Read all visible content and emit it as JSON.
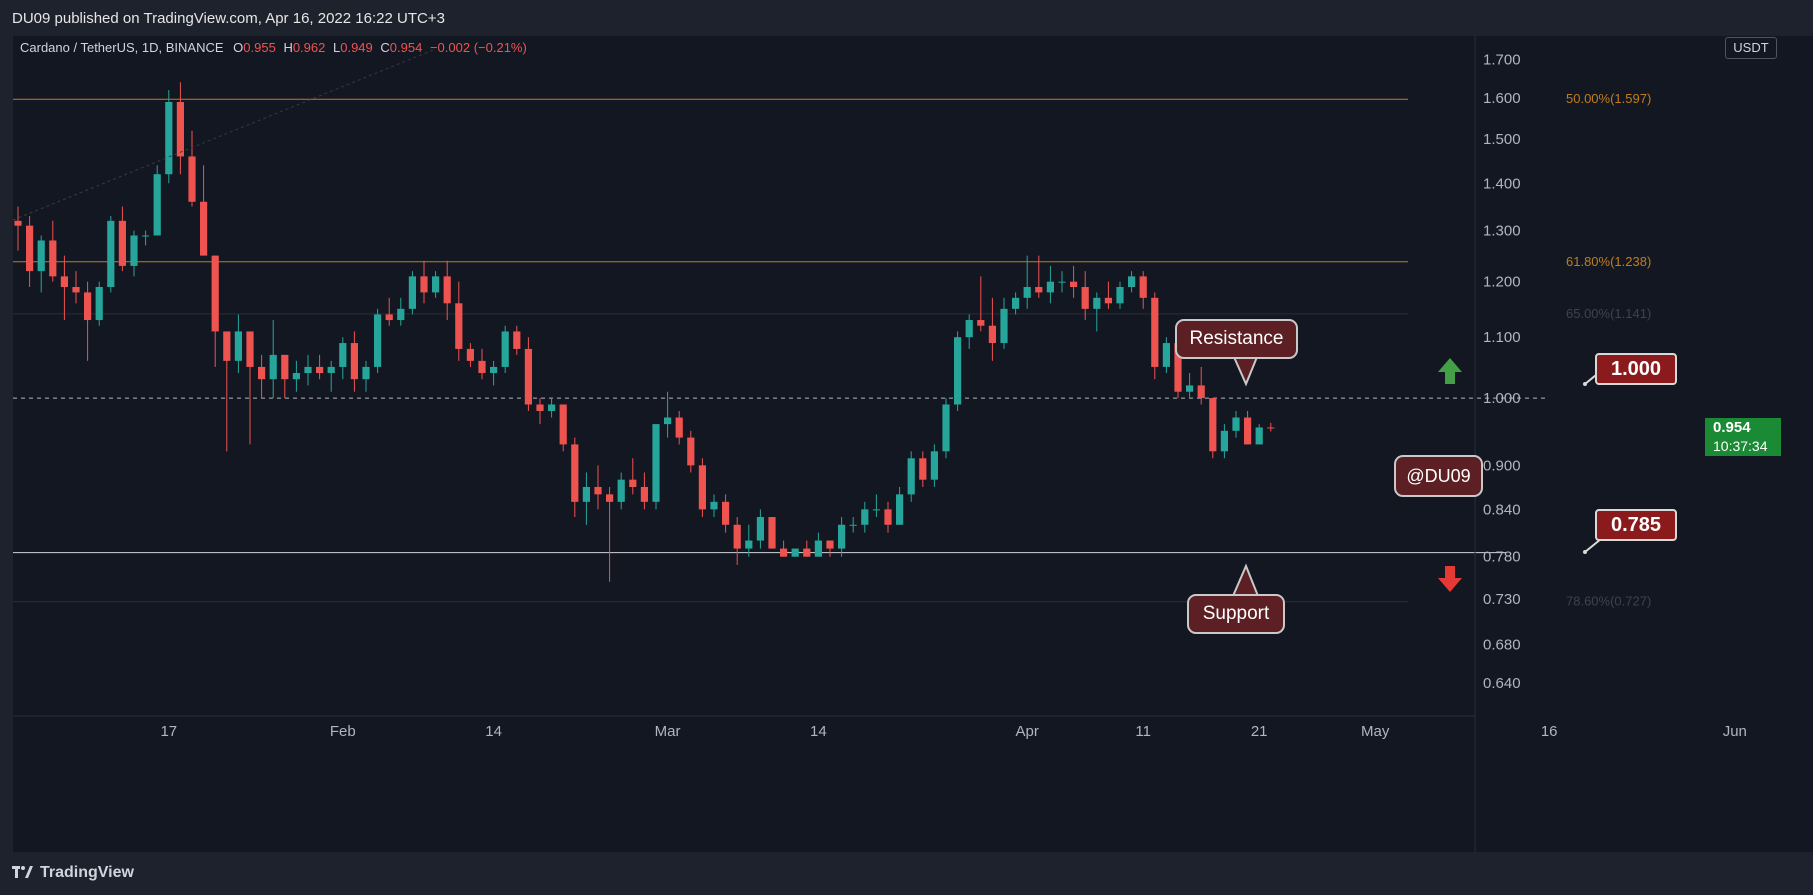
{
  "header": {
    "published": "DU09 published on TradingView.com, Apr 16, 2022 16:22 UTC+3"
  },
  "symbol": {
    "name": "Cardano / TetherUS, 1D, BINANCE",
    "o_label": "O",
    "o_value": "0.955",
    "h_label": "H",
    "h_value": "0.962",
    "l_label": "L",
    "l_value": "0.949",
    "c_label": "C",
    "c_value": "0.954",
    "change": "−0.002 (−0.21%)"
  },
  "currency": "USDT",
  "last_price": {
    "value": "0.954",
    "countdown": "10:37:34"
  },
  "colors": {
    "up": "#26a69a",
    "down": "#ef5350",
    "fib": "#c17d1a",
    "background": "#131722",
    "annotation": "#5b1f24",
    "price_tag": "#8a1a1c"
  },
  "annotations": {
    "resistance_label": "Resistance",
    "support_label": "Support",
    "author_label": "@DU09",
    "resistance_price": "1.000",
    "support_price": "0.785"
  },
  "footer": {
    "brand": "TradingView"
  },
  "chart_data": {
    "type": "candlestick",
    "title": "Cardano / TetherUS, 1D, BINANCE",
    "ylabel": "USDT",
    "ylim": [
      0.6,
      1.72
    ],
    "y_scale": "log",
    "y_ticks": [
      "1.700",
      "1.600",
      "1.500",
      "1.400",
      "1.300",
      "1.200",
      "1.100",
      "1.000",
      "0.900",
      "0.840",
      "0.780",
      "0.730",
      "0.680",
      "0.640"
    ],
    "x_ticks": [
      {
        "label": "17",
        "date": "2022-01-17"
      },
      {
        "label": "Feb",
        "date": "2022-02-01"
      },
      {
        "label": "14",
        "date": "2022-02-14"
      },
      {
        "label": "Mar",
        "date": "2022-03-01"
      },
      {
        "label": "14",
        "date": "2022-03-14"
      },
      {
        "label": "Apr",
        "date": "2022-04-01"
      },
      {
        "label": "11",
        "date": "2022-04-11"
      },
      {
        "label": "21",
        "date": "2022-04-21"
      },
      {
        "label": "May",
        "date": "2022-05-01"
      },
      {
        "label": "16",
        "date": "2022-05-16"
      },
      {
        "label": "Jun",
        "date": "2022-06-01"
      }
    ],
    "x_range": [
      "2022-01-04",
      "2022-06-03"
    ],
    "fib_levels": [
      {
        "label": "50.00%(1.597)",
        "price": 1.597,
        "style": "solid"
      },
      {
        "label": "61.80%(1.238)",
        "price": 1.238,
        "style": "solid"
      },
      {
        "label": "65.00%(1.141)",
        "price": 1.141,
        "style": "faint"
      },
      {
        "label": "78.60%(0.727)",
        "price": 0.727,
        "style": "faint"
      }
    ],
    "horizontal_lines": [
      {
        "price": 1.0,
        "style": "dashed"
      },
      {
        "price": 0.785,
        "style": "solid"
      }
    ],
    "candles": [
      {
        "date": "2022-01-04",
        "o": 1.32,
        "h": 1.35,
        "l": 1.26,
        "c": 1.31
      },
      {
        "date": "2022-01-05",
        "o": 1.31,
        "h": 1.33,
        "l": 1.19,
        "c": 1.22
      },
      {
        "date": "2022-01-06",
        "o": 1.22,
        "h": 1.29,
        "l": 1.18,
        "c": 1.28
      },
      {
        "date": "2022-01-07",
        "o": 1.28,
        "h": 1.32,
        "l": 1.2,
        "c": 1.21
      },
      {
        "date": "2022-01-08",
        "o": 1.21,
        "h": 1.25,
        "l": 1.13,
        "c": 1.19
      },
      {
        "date": "2022-01-09",
        "o": 1.19,
        "h": 1.22,
        "l": 1.16,
        "c": 1.18
      },
      {
        "date": "2022-01-10",
        "o": 1.18,
        "h": 1.2,
        "l": 1.06,
        "c": 1.13
      },
      {
        "date": "2022-01-11",
        "o": 1.13,
        "h": 1.2,
        "l": 1.12,
        "c": 1.19
      },
      {
        "date": "2022-01-12",
        "o": 1.19,
        "h": 1.33,
        "l": 1.18,
        "c": 1.32
      },
      {
        "date": "2022-01-13",
        "o": 1.32,
        "h": 1.35,
        "l": 1.22,
        "c": 1.23
      },
      {
        "date": "2022-01-14",
        "o": 1.23,
        "h": 1.3,
        "l": 1.21,
        "c": 1.29
      },
      {
        "date": "2022-01-15",
        "o": 1.29,
        "h": 1.3,
        "l": 1.27,
        "c": 1.29
      },
      {
        "date": "2022-01-16",
        "o": 1.29,
        "h": 1.44,
        "l": 1.29,
        "c": 1.42
      },
      {
        "date": "2022-01-17",
        "o": 1.42,
        "h": 1.62,
        "l": 1.4,
        "c": 1.59
      },
      {
        "date": "2022-01-18",
        "o": 1.59,
        "h": 1.64,
        "l": 1.42,
        "c": 1.46
      },
      {
        "date": "2022-01-19",
        "o": 1.46,
        "h": 1.52,
        "l": 1.35,
        "c": 1.36
      },
      {
        "date": "2022-01-20",
        "o": 1.36,
        "h": 1.44,
        "l": 1.25,
        "c": 1.25
      },
      {
        "date": "2022-01-21",
        "o": 1.25,
        "h": 1.25,
        "l": 1.05,
        "c": 1.11
      },
      {
        "date": "2022-01-22",
        "o": 1.11,
        "h": 1.11,
        "l": 0.92,
        "c": 1.06
      },
      {
        "date": "2022-01-23",
        "o": 1.06,
        "h": 1.14,
        "l": 1.04,
        "c": 1.11
      },
      {
        "date": "2022-01-24",
        "o": 1.11,
        "h": 1.11,
        "l": 0.93,
        "c": 1.05
      },
      {
        "date": "2022-01-25",
        "o": 1.05,
        "h": 1.07,
        "l": 1.0,
        "c": 1.03
      },
      {
        "date": "2022-01-26",
        "o": 1.03,
        "h": 1.13,
        "l": 1.0,
        "c": 1.07
      },
      {
        "date": "2022-01-27",
        "o": 1.07,
        "h": 1.07,
        "l": 1.0,
        "c": 1.03
      },
      {
        "date": "2022-01-28",
        "o": 1.03,
        "h": 1.06,
        "l": 1.01,
        "c": 1.04
      },
      {
        "date": "2022-01-29",
        "o": 1.04,
        "h": 1.07,
        "l": 1.02,
        "c": 1.05
      },
      {
        "date": "2022-01-30",
        "o": 1.05,
        "h": 1.07,
        "l": 1.03,
        "c": 1.04
      },
      {
        "date": "2022-01-31",
        "o": 1.04,
        "h": 1.06,
        "l": 1.01,
        "c": 1.05
      },
      {
        "date": "2022-02-01",
        "o": 1.05,
        "h": 1.1,
        "l": 1.03,
        "c": 1.09
      },
      {
        "date": "2022-02-02",
        "o": 1.09,
        "h": 1.11,
        "l": 1.01,
        "c": 1.03
      },
      {
        "date": "2022-02-03",
        "o": 1.03,
        "h": 1.06,
        "l": 1.01,
        "c": 1.05
      },
      {
        "date": "2022-02-04",
        "o": 1.05,
        "h": 1.15,
        "l": 1.04,
        "c": 1.14
      },
      {
        "date": "2022-02-05",
        "o": 1.14,
        "h": 1.17,
        "l": 1.12,
        "c": 1.13
      },
      {
        "date": "2022-02-06",
        "o": 1.13,
        "h": 1.17,
        "l": 1.12,
        "c": 1.15
      },
      {
        "date": "2022-02-07",
        "o": 1.15,
        "h": 1.22,
        "l": 1.14,
        "c": 1.21
      },
      {
        "date": "2022-02-08",
        "o": 1.21,
        "h": 1.24,
        "l": 1.16,
        "c": 1.18
      },
      {
        "date": "2022-02-09",
        "o": 1.18,
        "h": 1.22,
        "l": 1.17,
        "c": 1.21
      },
      {
        "date": "2022-02-10",
        "o": 1.21,
        "h": 1.24,
        "l": 1.13,
        "c": 1.16
      },
      {
        "date": "2022-02-11",
        "o": 1.16,
        "h": 1.2,
        "l": 1.06,
        "c": 1.08
      },
      {
        "date": "2022-02-12",
        "o": 1.08,
        "h": 1.09,
        "l": 1.05,
        "c": 1.06
      },
      {
        "date": "2022-02-13",
        "o": 1.06,
        "h": 1.08,
        "l": 1.03,
        "c": 1.04
      },
      {
        "date": "2022-02-14",
        "o": 1.04,
        "h": 1.06,
        "l": 1.02,
        "c": 1.05
      },
      {
        "date": "2022-02-15",
        "o": 1.05,
        "h": 1.12,
        "l": 1.04,
        "c": 1.11
      },
      {
        "date": "2022-02-16",
        "o": 1.11,
        "h": 1.12,
        "l": 1.07,
        "c": 1.08
      },
      {
        "date": "2022-02-17",
        "o": 1.08,
        "h": 1.1,
        "l": 0.98,
        "c": 0.99
      },
      {
        "date": "2022-02-18",
        "o": 0.99,
        "h": 1.0,
        "l": 0.96,
        "c": 0.98
      },
      {
        "date": "2022-02-19",
        "o": 0.98,
        "h": 1.0,
        "l": 0.97,
        "c": 0.99
      },
      {
        "date": "2022-02-20",
        "o": 0.99,
        "h": 0.99,
        "l": 0.92,
        "c": 0.93
      },
      {
        "date": "2022-02-21",
        "o": 0.93,
        "h": 0.94,
        "l": 0.83,
        "c": 0.85
      },
      {
        "date": "2022-02-22",
        "o": 0.85,
        "h": 0.89,
        "l": 0.82,
        "c": 0.87
      },
      {
        "date": "2022-02-23",
        "o": 0.87,
        "h": 0.9,
        "l": 0.84,
        "c": 0.86
      },
      {
        "date": "2022-02-24",
        "o": 0.86,
        "h": 0.87,
        "l": 0.75,
        "c": 0.85
      },
      {
        "date": "2022-02-25",
        "o": 0.85,
        "h": 0.89,
        "l": 0.84,
        "c": 0.88
      },
      {
        "date": "2022-02-26",
        "o": 0.88,
        "h": 0.91,
        "l": 0.86,
        "c": 0.87
      },
      {
        "date": "2022-02-27",
        "o": 0.87,
        "h": 0.89,
        "l": 0.84,
        "c": 0.85
      },
      {
        "date": "2022-02-28",
        "o": 0.85,
        "h": 0.96,
        "l": 0.84,
        "c": 0.96
      },
      {
        "date": "2022-03-01",
        "o": 0.96,
        "h": 1.01,
        "l": 0.94,
        "c": 0.97
      },
      {
        "date": "2022-03-02",
        "o": 0.97,
        "h": 0.98,
        "l": 0.93,
        "c": 0.94
      },
      {
        "date": "2022-03-03",
        "o": 0.94,
        "h": 0.95,
        "l": 0.89,
        "c": 0.9
      },
      {
        "date": "2022-03-04",
        "o": 0.9,
        "h": 0.91,
        "l": 0.83,
        "c": 0.84
      },
      {
        "date": "2022-03-05",
        "o": 0.84,
        "h": 0.86,
        "l": 0.83,
        "c": 0.85
      },
      {
        "date": "2022-03-06",
        "o": 0.85,
        "h": 0.86,
        "l": 0.81,
        "c": 0.82
      },
      {
        "date": "2022-03-07",
        "o": 0.82,
        "h": 0.83,
        "l": 0.77,
        "c": 0.79
      },
      {
        "date": "2022-03-08",
        "o": 0.79,
        "h": 0.82,
        "l": 0.78,
        "c": 0.8
      },
      {
        "date": "2022-03-09",
        "o": 0.8,
        "h": 0.84,
        "l": 0.79,
        "c": 0.83
      },
      {
        "date": "2022-03-10",
        "o": 0.83,
        "h": 0.83,
        "l": 0.79,
        "c": 0.79
      },
      {
        "date": "2022-03-11",
        "o": 0.79,
        "h": 0.8,
        "l": 0.78,
        "c": 0.78
      },
      {
        "date": "2022-03-12",
        "o": 0.78,
        "h": 0.79,
        "l": 0.78,
        "c": 0.79
      },
      {
        "date": "2022-03-13",
        "o": 0.79,
        "h": 0.8,
        "l": 0.78,
        "c": 0.78
      },
      {
        "date": "2022-03-14",
        "o": 0.78,
        "h": 0.81,
        "l": 0.78,
        "c": 0.8
      },
      {
        "date": "2022-03-15",
        "o": 0.8,
        "h": 0.8,
        "l": 0.78,
        "c": 0.79
      },
      {
        "date": "2022-03-16",
        "o": 0.79,
        "h": 0.83,
        "l": 0.78,
        "c": 0.82
      },
      {
        "date": "2022-03-17",
        "o": 0.82,
        "h": 0.83,
        "l": 0.81,
        "c": 0.82
      },
      {
        "date": "2022-03-18",
        "o": 0.82,
        "h": 0.85,
        "l": 0.81,
        "c": 0.84
      },
      {
        "date": "2022-03-19",
        "o": 0.84,
        "h": 0.86,
        "l": 0.83,
        "c": 0.84
      },
      {
        "date": "2022-03-20",
        "o": 0.84,
        "h": 0.85,
        "l": 0.81,
        "c": 0.82
      },
      {
        "date": "2022-03-21",
        "o": 0.82,
        "h": 0.87,
        "l": 0.82,
        "c": 0.86
      },
      {
        "date": "2022-03-22",
        "o": 0.86,
        "h": 0.92,
        "l": 0.85,
        "c": 0.91
      },
      {
        "date": "2022-03-23",
        "o": 0.91,
        "h": 0.92,
        "l": 0.87,
        "c": 0.88
      },
      {
        "date": "2022-03-24",
        "o": 0.88,
        "h": 0.93,
        "l": 0.87,
        "c": 0.92
      },
      {
        "date": "2022-03-25",
        "o": 0.92,
        "h": 1.0,
        "l": 0.91,
        "c": 0.99
      },
      {
        "date": "2022-03-26",
        "o": 0.99,
        "h": 1.11,
        "l": 0.98,
        "c": 1.1
      },
      {
        "date": "2022-03-27",
        "o": 1.1,
        "h": 1.14,
        "l": 1.08,
        "c": 1.13
      },
      {
        "date": "2022-03-28",
        "o": 1.13,
        "h": 1.21,
        "l": 1.11,
        "c": 1.12
      },
      {
        "date": "2022-03-29",
        "o": 1.12,
        "h": 1.17,
        "l": 1.06,
        "c": 1.09
      },
      {
        "date": "2022-03-30",
        "o": 1.09,
        "h": 1.17,
        "l": 1.08,
        "c": 1.15
      },
      {
        "date": "2022-03-31",
        "o": 1.15,
        "h": 1.18,
        "l": 1.14,
        "c": 1.17
      },
      {
        "date": "2022-04-01",
        "o": 1.17,
        "h": 1.25,
        "l": 1.15,
        "c": 1.19
      },
      {
        "date": "2022-04-02",
        "o": 1.19,
        "h": 1.25,
        "l": 1.17,
        "c": 1.18
      },
      {
        "date": "2022-04-03",
        "o": 1.18,
        "h": 1.23,
        "l": 1.16,
        "c": 1.2
      },
      {
        "date": "2022-04-04",
        "o": 1.2,
        "h": 1.22,
        "l": 1.18,
        "c": 1.2
      },
      {
        "date": "2022-04-05",
        "o": 1.2,
        "h": 1.23,
        "l": 1.17,
        "c": 1.19
      },
      {
        "date": "2022-04-06",
        "o": 1.19,
        "h": 1.22,
        "l": 1.13,
        "c": 1.15
      },
      {
        "date": "2022-04-07",
        "o": 1.15,
        "h": 1.18,
        "l": 1.11,
        "c": 1.17
      },
      {
        "date": "2022-04-08",
        "o": 1.17,
        "h": 1.2,
        "l": 1.15,
        "c": 1.16
      },
      {
        "date": "2022-04-09",
        "o": 1.16,
        "h": 1.2,
        "l": 1.15,
        "c": 1.19
      },
      {
        "date": "2022-04-10",
        "o": 1.19,
        "h": 1.22,
        "l": 1.18,
        "c": 1.21
      },
      {
        "date": "2022-04-11",
        "o": 1.21,
        "h": 1.22,
        "l": 1.15,
        "c": 1.17
      },
      {
        "date": "2022-04-12",
        "o": 1.17,
        "h": 1.18,
        "l": 1.03,
        "c": 1.05
      },
      {
        "date": "2022-04-13",
        "o": 1.05,
        "h": 1.1,
        "l": 1.04,
        "c": 1.09
      },
      {
        "date": "2022-04-14",
        "o": 1.09,
        "h": 1.09,
        "l": 1.0,
        "c": 1.01
      },
      {
        "date": "2022-04-15",
        "o": 1.01,
        "h": 1.04,
        "l": 1.0,
        "c": 1.02
      },
      {
        "date": "2022-04-16",
        "o": 1.02,
        "h": 1.05,
        "l": 0.99,
        "c": 1.0
      },
      {
        "date": "2022-04-17",
        "o": 1.0,
        "h": 1.0,
        "l": 0.91,
        "c": 0.92
      },
      {
        "date": "2022-04-18",
        "o": 0.92,
        "h": 0.96,
        "l": 0.91,
        "c": 0.95
      },
      {
        "date": "2022-04-19",
        "o": 0.95,
        "h": 0.98,
        "l": 0.94,
        "c": 0.97
      },
      {
        "date": "2022-04-20",
        "o": 0.97,
        "h": 0.98,
        "l": 0.93,
        "c": 0.93
      },
      {
        "date": "2022-04-21",
        "o": 0.93,
        "h": 0.96,
        "l": 0.93,
        "c": 0.955
      },
      {
        "date": "2022-04-22",
        "o": 0.955,
        "h": 0.962,
        "l": 0.949,
        "c": 0.954
      }
    ]
  }
}
